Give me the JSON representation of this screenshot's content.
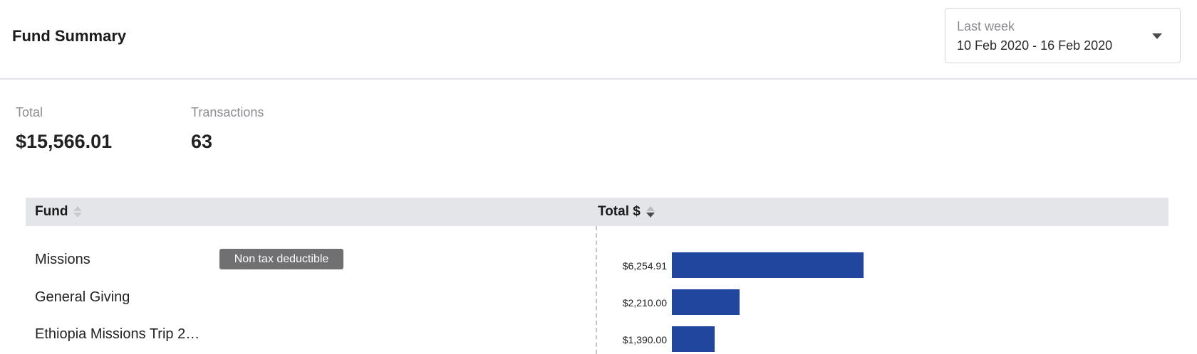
{
  "header": {
    "title": "Fund Summary",
    "date_range": {
      "label": "Last week",
      "value": "10 Feb 2020 - 16 Feb 2020",
      "icon": "caret-down-icon"
    }
  },
  "stats": {
    "total": {
      "label": "Total",
      "value": "$15,566.01"
    },
    "transactions": {
      "label": "Transactions",
      "value": "63"
    }
  },
  "table": {
    "columns": [
      "Fund",
      "Total $"
    ],
    "rows": [
      {
        "fund": "Missions",
        "tag": "Non tax deductible",
        "total": "$6,254.91"
      },
      {
        "fund": "General Giving",
        "tag": "",
        "total": "$2,210.00"
      },
      {
        "fund": "Ethiopia Missions Trip 2…",
        "tag": "",
        "total": "$1,390.00"
      }
    ]
  },
  "chart_data": {
    "type": "bar",
    "orientation": "horizontal",
    "categories": [
      "Missions",
      "General Giving",
      "Ethiopia Missions Trip 2…"
    ],
    "values": [
      6254.91,
      2210.0,
      1390.0
    ],
    "value_labels": [
      "$6,254.91",
      "$2,210.00",
      "$1,390.00"
    ],
    "xlim": [
      0,
      15566.01
    ],
    "bar_color": "#21469d"
  }
}
